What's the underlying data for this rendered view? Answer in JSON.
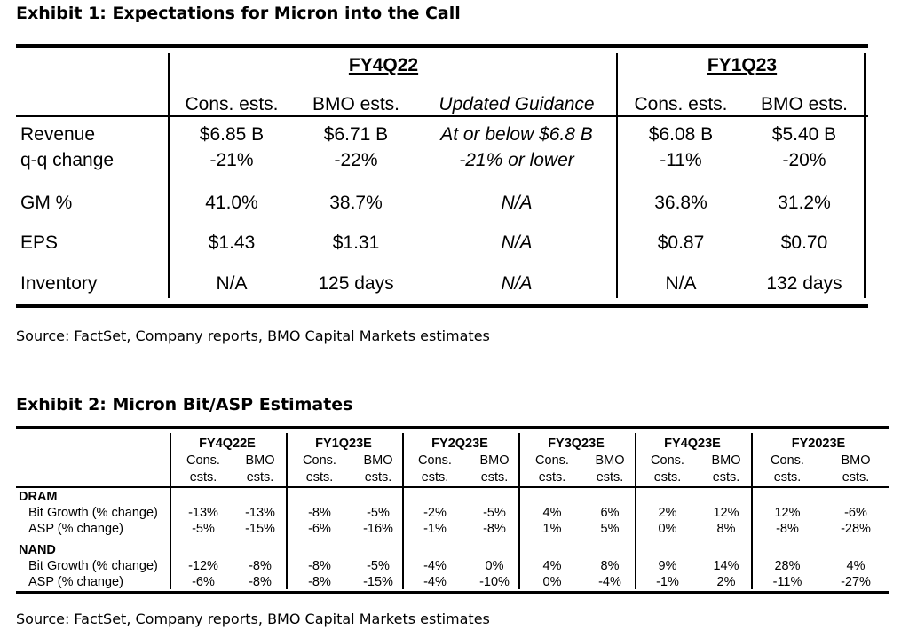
{
  "exhibit1": {
    "title": "Exhibit 1: Expectations for Micron into the Call",
    "groups": [
      "FY4Q22",
      "FY1Q23"
    ],
    "columns": [
      "Cons. ests.",
      "BMO ests.",
      "Updated Guidance",
      "Cons. ests.",
      "BMO ests."
    ],
    "rows": [
      {
        "label": "Revenue",
        "values": [
          "$6.85 B",
          "$6.71 B",
          "At or below $6.8 B",
          "$6.08 B",
          "$5.40 B"
        ]
      },
      {
        "label": "q-q change",
        "values": [
          "-21%",
          "-22%",
          "-21% or lower",
          "-11%",
          "-20%"
        ]
      },
      {
        "label": "GM %",
        "values": [
          "41.0%",
          "38.7%",
          "N/A",
          "36.8%",
          "31.2%"
        ]
      },
      {
        "label": "EPS",
        "values": [
          "$1.43",
          "$1.31",
          "N/A",
          "$0.87",
          "$0.70"
        ]
      },
      {
        "label": "Inventory",
        "values": [
          "N/A",
          "125 days",
          "N/A",
          "N/A",
          "132 days"
        ]
      }
    ],
    "source": "Source: FactSet, Company reports, BMO Capital Markets estimates"
  },
  "exhibit2": {
    "title": "Exhibit 2: Micron Bit/ASP Estimates",
    "groups": [
      "FY4Q22E",
      "FY1Q23E",
      "FY2Q23E",
      "FY3Q23E",
      "FY4Q23E",
      "FY2023E"
    ],
    "subhead_top": [
      "Cons.",
      "BMO"
    ],
    "subhead_bottom": [
      "ests.",
      "ests."
    ],
    "sections": [
      {
        "name": "DRAM",
        "rows": [
          {
            "label": "Bit Growth (% change)",
            "values": [
              "-13%",
              "-13%",
              "-8%",
              "-5%",
              "-2%",
              "-5%",
              "4%",
              "6%",
              "2%",
              "12%",
              "12%",
              "-6%"
            ]
          },
          {
            "label": "ASP (% change)",
            "values": [
              "-5%",
              "-15%",
              "-6%",
              "-16%",
              "-1%",
              "-8%",
              "1%",
              "5%",
              "0%",
              "8%",
              "-8%",
              "-28%"
            ]
          }
        ]
      },
      {
        "name": "NAND",
        "rows": [
          {
            "label": "Bit Growth (% change)",
            "values": [
              "-12%",
              "-8%",
              "-8%",
              "-5%",
              "-4%",
              "0%",
              "4%",
              "8%",
              "9%",
              "14%",
              "28%",
              "4%"
            ]
          },
          {
            "label": "ASP (% change)",
            "values": [
              "-6%",
              "-8%",
              "-8%",
              "-15%",
              "-4%",
              "-10%",
              "0%",
              "-4%",
              "-1%",
              "2%",
              "-11%",
              "-27%"
            ]
          }
        ]
      }
    ],
    "source": "Source: FactSet, Company reports, BMO Capital Markets estimates"
  }
}
